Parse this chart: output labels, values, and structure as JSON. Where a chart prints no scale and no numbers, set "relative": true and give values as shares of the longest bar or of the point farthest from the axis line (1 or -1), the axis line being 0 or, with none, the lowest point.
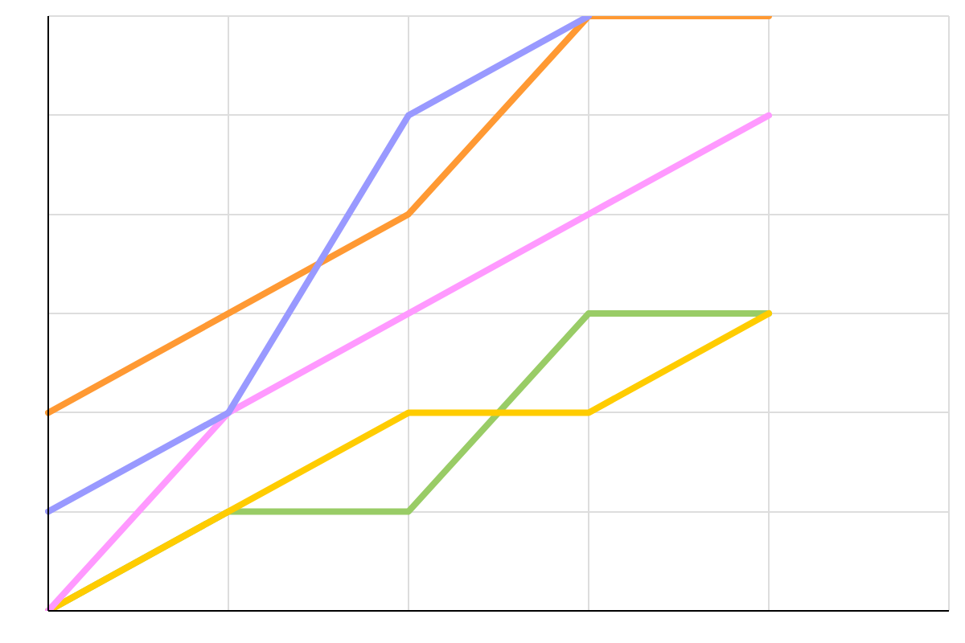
{
  "chart_data": {
    "type": "line",
    "relative": true,
    "grid": true,
    "legend": false,
    "marker": "none",
    "line_style": "solid",
    "categories": [
      null,
      null,
      null,
      null,
      null,
      null
    ],
    "series": [
      {
        "color": "#9999ff",
        "values": [
          0.167,
          0.333,
          0.833,
          1,
          null,
          null
        ]
      },
      {
        "color": "#ff9933",
        "values": [
          0.333,
          0.5,
          0.667,
          1,
          1,
          null
        ]
      },
      {
        "color": "#ff99ff",
        "values": [
          0,
          0.333,
          0.5,
          0.667,
          0.833,
          null
        ]
      },
      {
        "color": "#ffcc00",
        "values": [
          0,
          0.167,
          0.333,
          0.333,
          0.5,
          null
        ]
      },
      {
        "color": "#99cc66",
        "values": [
          0,
          0.167,
          0.167,
          0.5,
          0.5,
          null
        ]
      }
    ]
  }
}
